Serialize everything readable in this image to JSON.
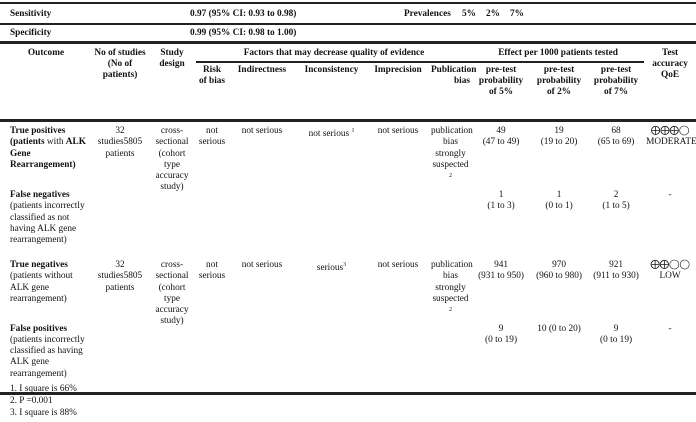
{
  "summary": {
    "sensitivity_label": "Sensitivity",
    "sensitivity_value": "0.97 (95% CI: 0.93 to 0.98)",
    "prevalences_label": "Prevalences",
    "prevalences": [
      "5%",
      "2%",
      "7%"
    ],
    "specificity_label": "Specificity",
    "specificity_value": "0.99 (95% CI: 0.98 to 1.00)"
  },
  "headers": {
    "outcome": "Outcome",
    "studies": "No of studies (No of patients)",
    "design": "Study design",
    "factors": "Factors that may decrease quality of evidence",
    "effect": "Effect per 1000 patients tested",
    "qoe": "Test accuracy QoE",
    "sub": [
      "Risk of bias",
      "Indirectness",
      "Inconsistency",
      "Imprecision",
      "Publication bias",
      "pre-test probability of 5%",
      "pre-test probability of 2%",
      "pre-test probability of 7%"
    ]
  },
  "rows": [
    {
      "outcome_bold": "True positives (patients",
      "outcome_rest": " with ",
      "outcome_bold2": "ALK Gene Rearrangement)",
      "studies": "32 studies5805 patients",
      "design": "cross-sectional (cohort type accuracy study)",
      "risk": "not serious",
      "indirectness": "not serious",
      "inconsistency": "not serious",
      "inconsistency_note": "1",
      "imprecision": "not serious",
      "publication": "publication bias strongly suspected",
      "publication_note": "2",
      "p5": "49",
      "p5_ci": "(47 to 49)",
      "p2": "19",
      "p2_ci": "(19 to 20)",
      "p7": "68",
      "p7_ci": "(65 to 69)",
      "qoe_symbol": "⨁⨁⨁◯",
      "qoe": "MODERATE"
    },
    {
      "outcome_bold": "False negatives",
      "outcome_rest": " (patients incorrectly classified as not having ALK gene rearrangement)",
      "p5": "1",
      "p5_ci": "(1 to 3)",
      "p2": "1",
      "p2_ci": "(0 to 1)",
      "p7": "2",
      "p7_ci": "(1 to 5)",
      "qoe": "-"
    },
    {
      "outcome_bold": "True negatives",
      "outcome_rest": " (patients without ALK gene rearrangement)",
      "studies": "32 studies5805 patients",
      "design": "cross-sectional (cohort type accuracy study)",
      "risk": "not serious",
      "indirectness": "not serious",
      "inconsistency": "serious",
      "inconsistency_note": "3",
      "imprecision": "not serious",
      "publication": "publication bias strongly suspected",
      "publication_note": "2",
      "p5": "941",
      "p5_ci": "(931 to 950)",
      "p2": "970",
      "p2_ci": "(960 to 980)",
      "p7": "921",
      "p7_ci": "(911 to 930)",
      "qoe_symbol": "⨁⨁◯◯",
      "qoe": "LOW"
    },
    {
      "outcome_bold": "False positives",
      "outcome_rest": " (patients incorrectly classified as having ALK gene rearrangement)",
      "p5": "9",
      "p5_ci": "(0 to 19)",
      "p2": "10 (0 to 20)",
      "p2_ci": "",
      "p7": "9",
      "p7_ci": "(0 to 19)",
      "qoe": "-"
    }
  ],
  "footnotes": [
    "1. I square is 66%",
    "2. P =0.001",
    "3. I square is 88%"
  ]
}
